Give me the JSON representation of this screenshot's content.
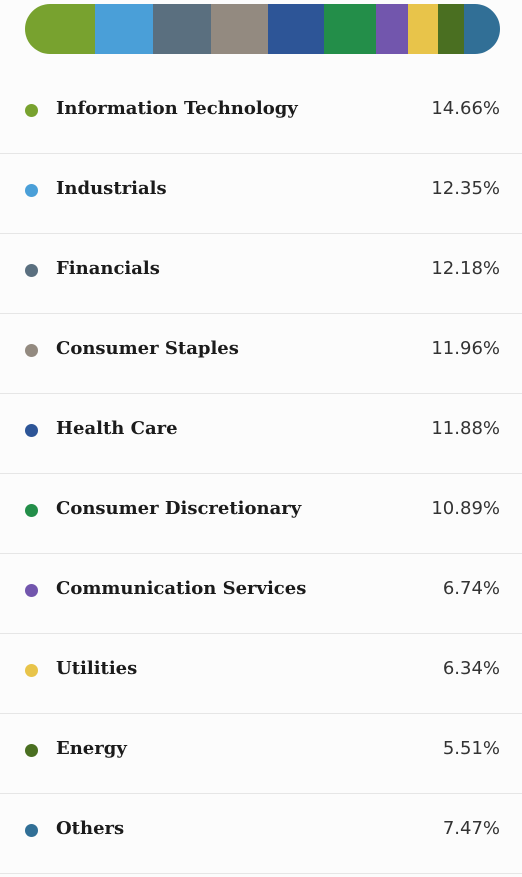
{
  "chart_data": {
    "type": "bar",
    "subtype": "stacked-horizontal-100",
    "legend": "list-below",
    "categories": [
      "Information Technology",
      "Industrials",
      "Financials",
      "Consumer Staples",
      "Health Care",
      "Consumer Discretionary",
      "Communication Services",
      "Utilities",
      "Energy",
      "Others"
    ],
    "values": [
      14.66,
      12.35,
      12.18,
      11.96,
      11.88,
      10.89,
      6.74,
      6.34,
      5.51,
      7.47
    ],
    "value_labels": [
      "14.66%",
      "12.35%",
      "12.18%",
      "11.96%",
      "11.88%",
      "10.89%",
      "6.74%",
      "6.34%",
      "5.51%",
      "7.47%"
    ],
    "colors": [
      "#78a22f",
      "#4a9fd8",
      "#5a6f7f",
      "#938a80",
      "#2d5597",
      "#238e49",
      "#7256ad",
      "#e8c44a",
      "#4a6f21",
      "#316f96"
    ],
    "unit": "%"
  }
}
